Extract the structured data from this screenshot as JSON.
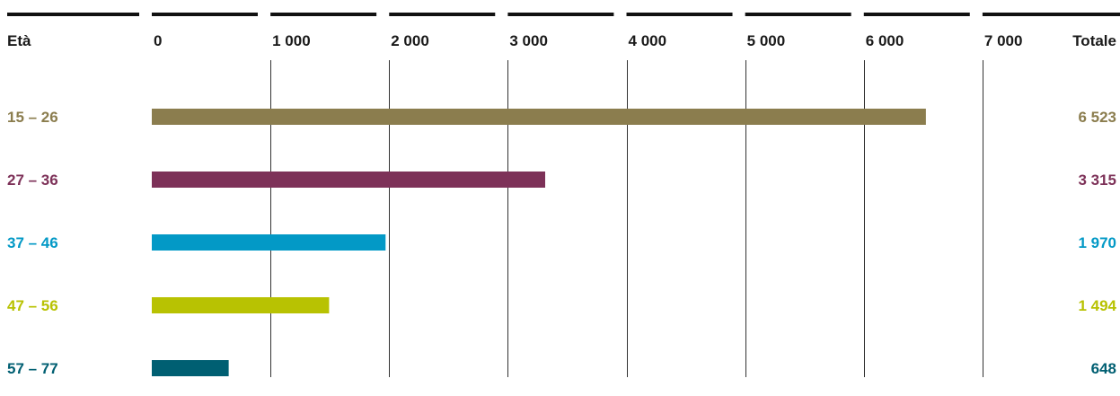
{
  "chart_data": {
    "type": "bar",
    "orientation": "horizontal",
    "category_header": "Età",
    "total_header": "Totale",
    "xlim": [
      0,
      7000
    ],
    "x_ticks": [
      0,
      1000,
      2000,
      3000,
      4000,
      5000,
      6000,
      7000
    ],
    "x_tick_labels": [
      "0",
      "1 000",
      "2 000",
      "3 000",
      "4 000",
      "5 000",
      "6 000",
      "7 000"
    ],
    "grid": true,
    "categories": [
      "15 – 26",
      "27 – 36",
      "37 – 46",
      "47 – 56",
      "57 – 77"
    ],
    "values": [
      6523,
      3315,
      1970,
      1494,
      648
    ],
    "total_labels": [
      "6 523",
      "3 315",
      "1 970",
      "1 494",
      "648"
    ],
    "colors": [
      "#8b7d4e",
      "#7d3158",
      "#0399c6",
      "#b8c202",
      "#005f72"
    ],
    "header_rule_color": "#111111",
    "grid_color": "#333333"
  }
}
